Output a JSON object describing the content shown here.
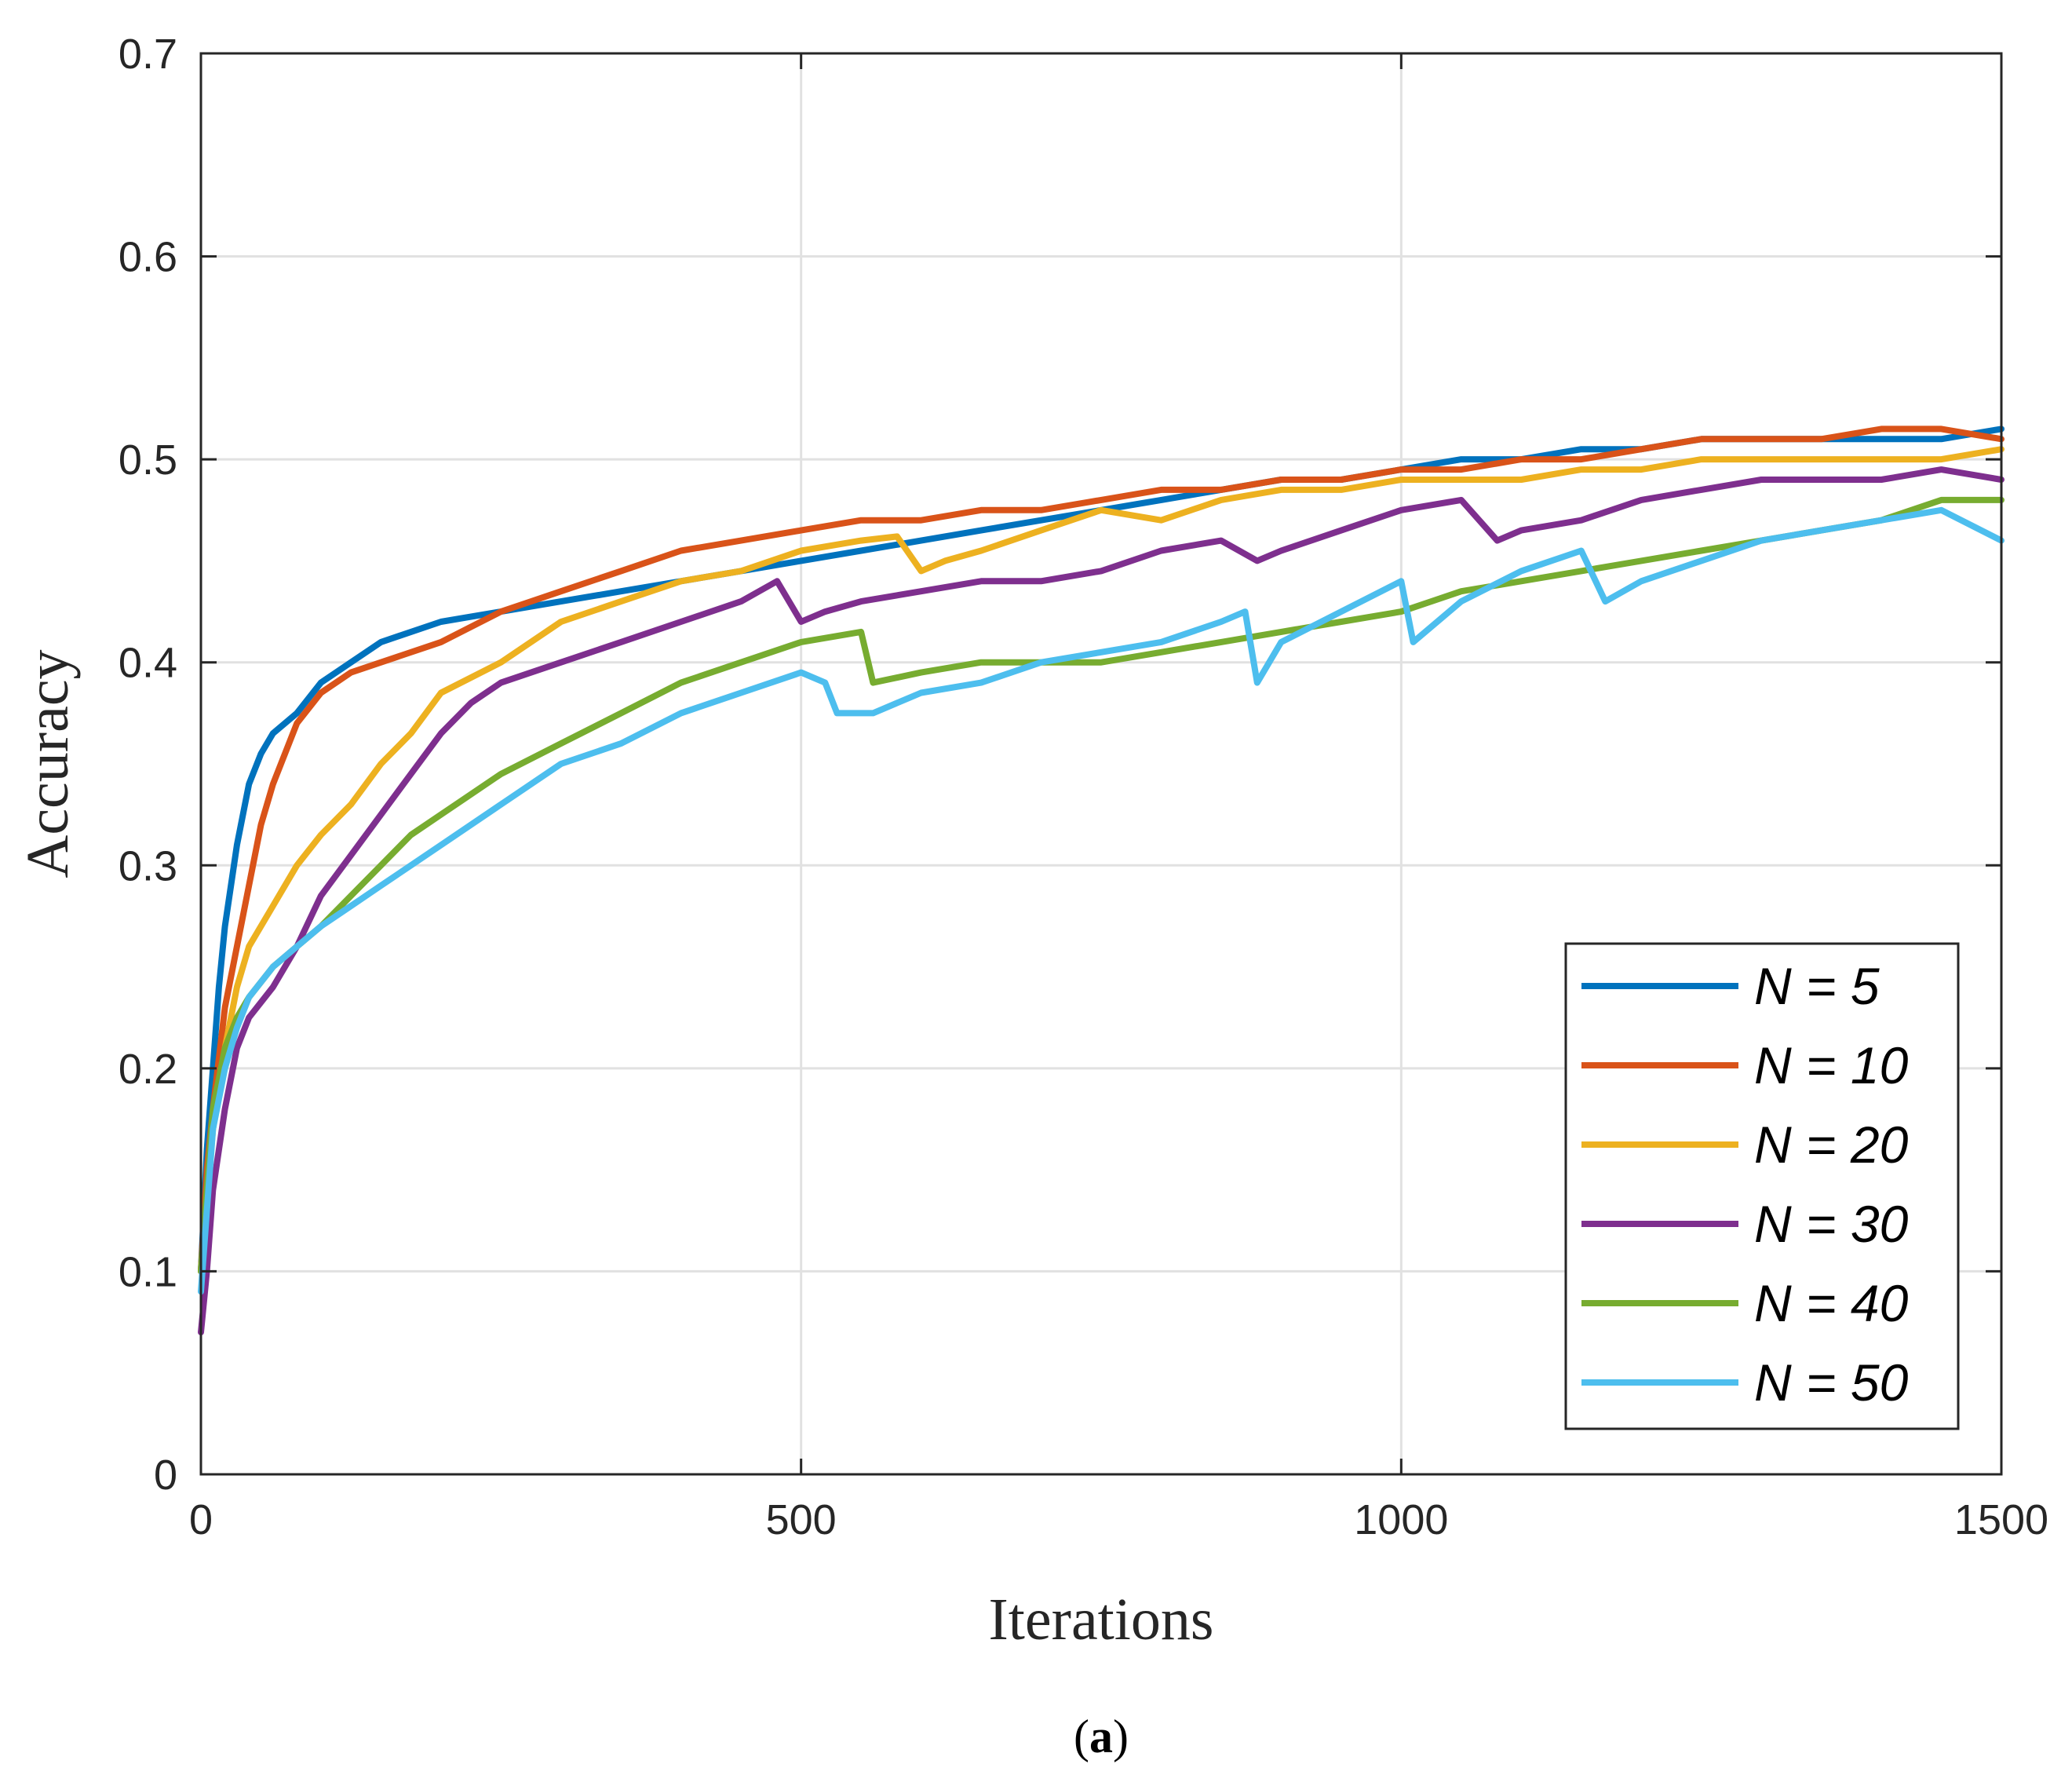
{
  "chart_data": {
    "type": "line",
    "title": "",
    "xlabel": "Iterations",
    "ylabel": "Accuracy",
    "caption_open": "(",
    "caption_letter": "a",
    "caption_close": ")",
    "xlim": [
      0,
      1500
    ],
    "ylim": [
      0,
      0.7
    ],
    "xticks": [
      0,
      500,
      1000,
      1500
    ],
    "xtick_labels": [
      "0",
      "500",
      "1000",
      "1500"
    ],
    "yticks": [
      0,
      0.1,
      0.2,
      0.3,
      0.4,
      0.5,
      0.6,
      0.7
    ],
    "ytick_labels": [
      "0",
      "0.1",
      "0.2",
      "0.3",
      "0.4",
      "0.5",
      "0.6",
      "0.7"
    ],
    "grid": true,
    "legend_position": "lower-right",
    "series": [
      {
        "name": "N = 5",
        "color": "#0072BD",
        "points": [
          [
            0,
            0.1
          ],
          [
            5,
            0.16
          ],
          [
            10,
            0.2
          ],
          [
            15,
            0.24
          ],
          [
            20,
            0.27
          ],
          [
            30,
            0.31
          ],
          [
            40,
            0.34
          ],
          [
            50,
            0.355
          ],
          [
            60,
            0.365
          ],
          [
            80,
            0.375
          ],
          [
            100,
            0.39
          ],
          [
            125,
            0.4
          ],
          [
            150,
            0.41
          ],
          [
            200,
            0.42
          ],
          [
            250,
            0.425
          ],
          [
            300,
            0.43
          ],
          [
            350,
            0.435
          ],
          [
            400,
            0.44
          ],
          [
            450,
            0.445
          ],
          [
            500,
            0.45
          ],
          [
            550,
            0.455
          ],
          [
            600,
            0.46
          ],
          [
            650,
            0.465
          ],
          [
            700,
            0.47
          ],
          [
            750,
            0.475
          ],
          [
            800,
            0.48
          ],
          [
            850,
            0.485
          ],
          [
            900,
            0.49
          ],
          [
            950,
            0.49
          ],
          [
            1000,
            0.495
          ],
          [
            1050,
            0.5
          ],
          [
            1100,
            0.5
          ],
          [
            1150,
            0.505
          ],
          [
            1200,
            0.505
          ],
          [
            1250,
            0.51
          ],
          [
            1300,
            0.51
          ],
          [
            1350,
            0.51
          ],
          [
            1400,
            0.51
          ],
          [
            1450,
            0.51
          ],
          [
            1500,
            0.515
          ]
        ]
      },
      {
        "name": "N = 10",
        "color": "#D95319",
        "points": [
          [
            0,
            0.1
          ],
          [
            5,
            0.15
          ],
          [
            10,
            0.18
          ],
          [
            20,
            0.23
          ],
          [
            30,
            0.26
          ],
          [
            40,
            0.29
          ],
          [
            50,
            0.32
          ],
          [
            60,
            0.34
          ],
          [
            80,
            0.37
          ],
          [
            100,
            0.385
          ],
          [
            125,
            0.395
          ],
          [
            150,
            0.4
          ],
          [
            200,
            0.41
          ],
          [
            250,
            0.425
          ],
          [
            300,
            0.435
          ],
          [
            350,
            0.445
          ],
          [
            400,
            0.455
          ],
          [
            450,
            0.46
          ],
          [
            500,
            0.465
          ],
          [
            550,
            0.47
          ],
          [
            600,
            0.47
          ],
          [
            650,
            0.475
          ],
          [
            700,
            0.475
          ],
          [
            750,
            0.48
          ],
          [
            800,
            0.485
          ],
          [
            850,
            0.485
          ],
          [
            900,
            0.49
          ],
          [
            950,
            0.49
          ],
          [
            1000,
            0.495
          ],
          [
            1050,
            0.495
          ],
          [
            1100,
            0.5
          ],
          [
            1150,
            0.5
          ],
          [
            1200,
            0.505
          ],
          [
            1250,
            0.51
          ],
          [
            1300,
            0.51
          ],
          [
            1350,
            0.51
          ],
          [
            1400,
            0.515
          ],
          [
            1450,
            0.515
          ],
          [
            1500,
            0.51
          ]
        ]
      },
      {
        "name": "N = 20",
        "color": "#EDB120",
        "points": [
          [
            0,
            0.1
          ],
          [
            10,
            0.17
          ],
          [
            20,
            0.21
          ],
          [
            30,
            0.24
          ],
          [
            40,
            0.26
          ],
          [
            60,
            0.28
          ],
          [
            80,
            0.3
          ],
          [
            100,
            0.315
          ],
          [
            125,
            0.33
          ],
          [
            150,
            0.35
          ],
          [
            175,
            0.365
          ],
          [
            200,
            0.385
          ],
          [
            250,
            0.4
          ],
          [
            300,
            0.42
          ],
          [
            350,
            0.43
          ],
          [
            400,
            0.44
          ],
          [
            450,
            0.445
          ],
          [
            500,
            0.455
          ],
          [
            550,
            0.46
          ],
          [
            580,
            0.462
          ],
          [
            600,
            0.445
          ],
          [
            620,
            0.45
          ],
          [
            650,
            0.455
          ],
          [
            700,
            0.465
          ],
          [
            750,
            0.475
          ],
          [
            800,
            0.47
          ],
          [
            850,
            0.48
          ],
          [
            900,
            0.485
          ],
          [
            950,
            0.485
          ],
          [
            1000,
            0.49
          ],
          [
            1050,
            0.49
          ],
          [
            1100,
            0.49
          ],
          [
            1150,
            0.495
          ],
          [
            1200,
            0.495
          ],
          [
            1250,
            0.5
          ],
          [
            1300,
            0.5
          ],
          [
            1350,
            0.5
          ],
          [
            1400,
            0.5
          ],
          [
            1450,
            0.5
          ],
          [
            1500,
            0.505
          ]
        ]
      },
      {
        "name": "N = 30",
        "color": "#7E2F8E",
        "points": [
          [
            0,
            0.07
          ],
          [
            5,
            0.1
          ],
          [
            10,
            0.14
          ],
          [
            20,
            0.18
          ],
          [
            30,
            0.21
          ],
          [
            40,
            0.225
          ],
          [
            60,
            0.24
          ],
          [
            80,
            0.26
          ],
          [
            100,
            0.285
          ],
          [
            125,
            0.305
          ],
          [
            150,
            0.325
          ],
          [
            175,
            0.345
          ],
          [
            200,
            0.365
          ],
          [
            225,
            0.38
          ],
          [
            250,
            0.39
          ],
          [
            300,
            0.4
          ],
          [
            350,
            0.41
          ],
          [
            400,
            0.42
          ],
          [
            450,
            0.43
          ],
          [
            480,
            0.44
          ],
          [
            500,
            0.42
          ],
          [
            520,
            0.425
          ],
          [
            550,
            0.43
          ],
          [
            600,
            0.435
          ],
          [
            650,
            0.44
          ],
          [
            700,
            0.44
          ],
          [
            750,
            0.445
          ],
          [
            800,
            0.455
          ],
          [
            850,
            0.46
          ],
          [
            880,
            0.45
          ],
          [
            900,
            0.455
          ],
          [
            950,
            0.465
          ],
          [
            1000,
            0.475
          ],
          [
            1050,
            0.48
          ],
          [
            1080,
            0.46
          ],
          [
            1100,
            0.465
          ],
          [
            1150,
            0.47
          ],
          [
            1200,
            0.48
          ],
          [
            1250,
            0.485
          ],
          [
            1300,
            0.49
          ],
          [
            1350,
            0.49
          ],
          [
            1400,
            0.49
          ],
          [
            1450,
            0.495
          ],
          [
            1500,
            0.49
          ]
        ]
      },
      {
        "name": "N = 40",
        "color": "#77AC30",
        "points": [
          [
            0,
            0.1
          ],
          [
            5,
            0.14
          ],
          [
            10,
            0.18
          ],
          [
            20,
            0.21
          ],
          [
            30,
            0.225
          ],
          [
            40,
            0.235
          ],
          [
            60,
            0.25
          ],
          [
            80,
            0.26
          ],
          [
            100,
            0.27
          ],
          [
            125,
            0.285
          ],
          [
            150,
            0.3
          ],
          [
            175,
            0.315
          ],
          [
            200,
            0.325
          ],
          [
            250,
            0.345
          ],
          [
            300,
            0.36
          ],
          [
            350,
            0.375
          ],
          [
            400,
            0.39
          ],
          [
            450,
            0.4
          ],
          [
            500,
            0.41
          ],
          [
            550,
            0.415
          ],
          [
            560,
            0.39
          ],
          [
            600,
            0.395
          ],
          [
            650,
            0.4
          ],
          [
            700,
            0.4
          ],
          [
            750,
            0.4
          ],
          [
            800,
            0.405
          ],
          [
            850,
            0.41
          ],
          [
            900,
            0.415
          ],
          [
            950,
            0.42
          ],
          [
            1000,
            0.425
          ],
          [
            1050,
            0.435
          ],
          [
            1100,
            0.44
          ],
          [
            1150,
            0.445
          ],
          [
            1200,
            0.45
          ],
          [
            1250,
            0.455
          ],
          [
            1300,
            0.46
          ],
          [
            1350,
            0.465
          ],
          [
            1400,
            0.47
          ],
          [
            1450,
            0.48
          ],
          [
            1500,
            0.48
          ]
        ]
      },
      {
        "name": "N = 50",
        "color": "#4DBEEE",
        "points": [
          [
            0,
            0.09
          ],
          [
            5,
            0.13
          ],
          [
            10,
            0.17
          ],
          [
            20,
            0.2
          ],
          [
            30,
            0.22
          ],
          [
            40,
            0.235
          ],
          [
            60,
            0.25
          ],
          [
            80,
            0.26
          ],
          [
            100,
            0.27
          ],
          [
            125,
            0.28
          ],
          [
            150,
            0.29
          ],
          [
            175,
            0.3
          ],
          [
            200,
            0.31
          ],
          [
            250,
            0.33
          ],
          [
            300,
            0.35
          ],
          [
            350,
            0.36
          ],
          [
            400,
            0.375
          ],
          [
            450,
            0.385
          ],
          [
            500,
            0.395
          ],
          [
            520,
            0.39
          ],
          [
            530,
            0.375
          ],
          [
            560,
            0.375
          ],
          [
            600,
            0.385
          ],
          [
            650,
            0.39
          ],
          [
            700,
            0.4
          ],
          [
            750,
            0.405
          ],
          [
            800,
            0.41
          ],
          [
            850,
            0.42
          ],
          [
            870,
            0.425
          ],
          [
            880,
            0.39
          ],
          [
            900,
            0.41
          ],
          [
            950,
            0.425
          ],
          [
            1000,
            0.44
          ],
          [
            1010,
            0.41
          ],
          [
            1050,
            0.43
          ],
          [
            1100,
            0.445
          ],
          [
            1150,
            0.455
          ],
          [
            1170,
            0.43
          ],
          [
            1200,
            0.44
          ],
          [
            1250,
            0.45
          ],
          [
            1300,
            0.46
          ],
          [
            1350,
            0.465
          ],
          [
            1400,
            0.47
          ],
          [
            1450,
            0.475
          ],
          [
            1500,
            0.46
          ]
        ]
      }
    ]
  }
}
